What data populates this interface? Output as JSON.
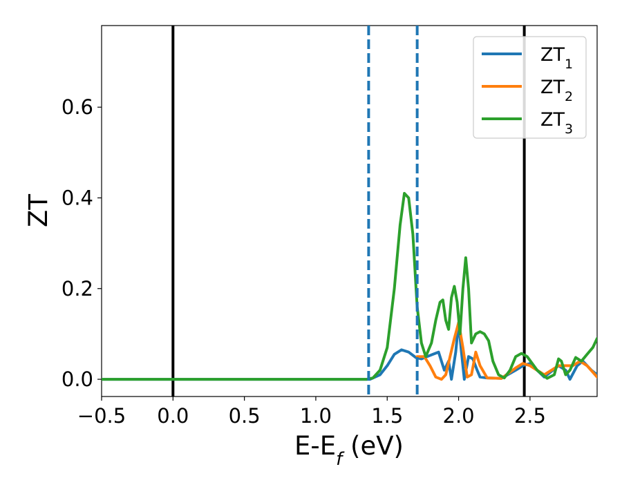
{
  "chart_data": {
    "type": "line",
    "xlabel": "E-E",
    "xlabel_sub": "f",
    "xlabel_unit": " (eV)",
    "ylabel": "ZT",
    "xlim": [
      -0.5,
      2.97
    ],
    "ylim": [
      -0.038,
      0.78
    ],
    "xticks": [
      -0.5,
      0.0,
      0.5,
      1.0,
      1.5,
      2.0,
      2.5
    ],
    "xtick_labels": [
      "−0.5",
      "0.0",
      "0.5",
      "1.0",
      "1.5",
      "2.0",
      "2.5"
    ],
    "yticks": [
      0.0,
      0.2,
      0.4,
      0.6
    ],
    "ytick_labels": [
      "0.0",
      "0.2",
      "0.4",
      "0.6"
    ],
    "grid": false,
    "legend_position": "top-right",
    "vlines": [
      {
        "x": 0.0,
        "style": "solid",
        "color": "#000000"
      },
      {
        "x": 2.46,
        "style": "solid",
        "color": "#000000"
      },
      {
        "x": 1.37,
        "style": "dashed",
        "color": "#1f77b4"
      },
      {
        "x": 1.71,
        "style": "dashed",
        "color": "#1f77b4"
      }
    ],
    "series": [
      {
        "name": "ZT",
        "sub": "1",
        "color": "#1f77b4",
        "points": [
          [
            -0.5,
            0
          ],
          [
            1.38,
            0
          ],
          [
            1.45,
            0.01
          ],
          [
            1.5,
            0.03
          ],
          [
            1.55,
            0.055
          ],
          [
            1.6,
            0.065
          ],
          [
            1.65,
            0.06
          ],
          [
            1.7,
            0.048
          ],
          [
            1.74,
            0.045
          ],
          [
            1.78,
            0.05
          ],
          [
            1.82,
            0.055
          ],
          [
            1.86,
            0.06
          ],
          [
            1.9,
            0.02
          ],
          [
            1.93,
            0.04
          ],
          [
            1.95,
            0.0
          ],
          [
            1.98,
            0.06
          ],
          [
            2.0,
            0.125
          ],
          [
            2.02,
            0.06
          ],
          [
            2.04,
            0.0
          ],
          [
            2.07,
            0.05
          ],
          [
            2.1,
            0.045
          ],
          [
            2.13,
            0.02
          ],
          [
            2.15,
            0.005
          ],
          [
            2.2,
            0.003
          ],
          [
            2.3,
            0.002
          ],
          [
            2.4,
            0.02
          ],
          [
            2.45,
            0.03
          ],
          [
            2.5,
            0.035
          ],
          [
            2.55,
            0.02
          ],
          [
            2.6,
            0.005
          ],
          [
            2.7,
            0.03
          ],
          [
            2.75,
            0.02
          ],
          [
            2.78,
            0.0
          ],
          [
            2.83,
            0.03
          ],
          [
            2.87,
            0.04
          ],
          [
            2.93,
            0.02
          ],
          [
            2.97,
            0.01
          ]
        ]
      },
      {
        "name": "ZT",
        "sub": "2",
        "color": "#ff7f0e",
        "points": [
          [
            1.71,
            0.05
          ],
          [
            1.76,
            0.05
          ],
          [
            1.8,
            0.03
          ],
          [
            1.84,
            0.005
          ],
          [
            1.88,
            0.0
          ],
          [
            1.91,
            0.01
          ],
          [
            1.94,
            0.05
          ],
          [
            1.97,
            0.09
          ],
          [
            2.0,
            0.125
          ],
          [
            2.03,
            0.07
          ],
          [
            2.06,
            0.005
          ],
          [
            2.09,
            0.01
          ],
          [
            2.12,
            0.06
          ],
          [
            2.15,
            0.03
          ],
          [
            2.2,
            0.003
          ],
          [
            2.3,
            0.002
          ],
          [
            2.4,
            0.025
          ],
          [
            2.45,
            0.035
          ],
          [
            2.5,
            0.03
          ],
          [
            2.6,
            0.01
          ],
          [
            2.7,
            0.03
          ],
          [
            2.8,
            0.03
          ],
          [
            2.85,
            0.04
          ],
          [
            2.9,
            0.03
          ],
          [
            2.97,
            0.005
          ]
        ]
      },
      {
        "name": "ZT",
        "sub": "3",
        "color": "#2ca02c",
        "points": [
          [
            -0.5,
            0
          ],
          [
            1.36,
            0
          ],
          [
            1.4,
            0.003
          ],
          [
            1.45,
            0.02
          ],
          [
            1.5,
            0.07
          ],
          [
            1.55,
            0.2
          ],
          [
            1.59,
            0.34
          ],
          [
            1.62,
            0.41
          ],
          [
            1.65,
            0.4
          ],
          [
            1.68,
            0.32
          ],
          [
            1.71,
            0.16
          ],
          [
            1.74,
            0.08
          ],
          [
            1.77,
            0.05
          ],
          [
            1.81,
            0.08
          ],
          [
            1.84,
            0.13
          ],
          [
            1.87,
            0.17
          ],
          [
            1.89,
            0.175
          ],
          [
            1.91,
            0.13
          ],
          [
            1.93,
            0.11
          ],
          [
            1.95,
            0.18
          ],
          [
            1.97,
            0.205
          ],
          [
            1.99,
            0.17
          ],
          [
            2.01,
            0.1
          ],
          [
            2.03,
            0.2
          ],
          [
            2.05,
            0.268
          ],
          [
            2.07,
            0.2
          ],
          [
            2.09,
            0.08
          ],
          [
            2.12,
            0.1
          ],
          [
            2.15,
            0.105
          ],
          [
            2.18,
            0.1
          ],
          [
            2.21,
            0.085
          ],
          [
            2.24,
            0.04
          ],
          [
            2.28,
            0.01
          ],
          [
            2.32,
            0.003
          ],
          [
            2.36,
            0.02
          ],
          [
            2.4,
            0.05
          ],
          [
            2.44,
            0.057
          ],
          [
            2.48,
            0.05
          ],
          [
            2.55,
            0.02
          ],
          [
            2.62,
            0.002
          ],
          [
            2.67,
            0.01
          ],
          [
            2.7,
            0.045
          ],
          [
            2.72,
            0.04
          ],
          [
            2.75,
            0.01
          ],
          [
            2.78,
            0.02
          ],
          [
            2.82,
            0.048
          ],
          [
            2.86,
            0.04
          ],
          [
            2.9,
            0.055
          ],
          [
            2.94,
            0.07
          ],
          [
            2.97,
            0.09
          ]
        ]
      }
    ]
  }
}
